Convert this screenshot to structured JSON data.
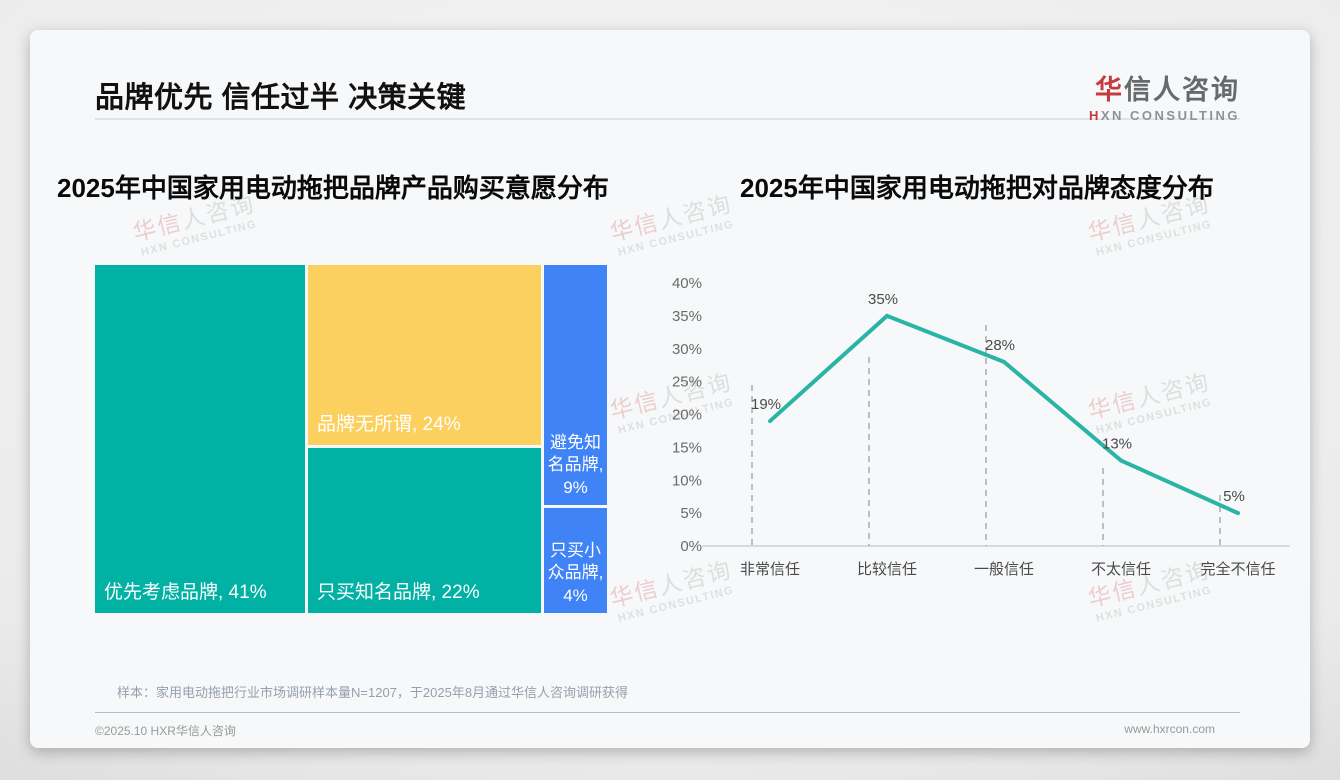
{
  "header": {
    "title": "品牌优先 信任过半 决策关键",
    "logo_cn_first": "华",
    "logo_cn_rest": "信人咨询",
    "logo_en_first": "H",
    "logo_en_rest": "XN CONSULTING"
  },
  "watermark": {
    "cn_pink": "华信",
    "cn_rest": "人咨询",
    "en": "HXN CONSULTING"
  },
  "footer": {
    "sample_note": "样本：家用电动拖把行业市场调研样本量N=1207，于2025年8月通过华信人咨询调研获得",
    "copyright": "©2025.10 HXR华信人咨询",
    "website": "www.hxrcon.com"
  },
  "chart_data": [
    {
      "type": "treemap",
      "title": "2025年中国家用电动拖把品牌产品购买意愿分布",
      "unit": "%",
      "nodes": [
        {
          "name": "优先考虑品牌",
          "value": 41,
          "label": "优先考虑品牌, 41%",
          "color": "#00b1a4"
        },
        {
          "name": "品牌无所谓",
          "value": 24,
          "label": "品牌无所谓, 24%",
          "color": "#fcd05f"
        },
        {
          "name": "只买知名品牌",
          "value": 22,
          "label": "只买知名品牌, 22%",
          "color": "#00b1a4"
        },
        {
          "name": "避免知名品牌",
          "value": 9,
          "label": "避免知名品牌, 9%",
          "color": "#3f83f6"
        },
        {
          "name": "只买小众品牌",
          "value": 4,
          "label": "只买小众品牌, 4%",
          "color": "#3f83f6"
        }
      ]
    },
    {
      "type": "line",
      "title": "2025年中国家用电动拖把对品牌态度分布",
      "categories": [
        "非常信任",
        "比较信任",
        "一般信任",
        "不太信任",
        "完全不信任"
      ],
      "values": [
        19,
        35,
        28,
        13,
        5
      ],
      "point_labels": [
        "19%",
        "35%",
        "28%",
        "13%",
        "5%"
      ],
      "yticks": [
        "0%",
        "5%",
        "10%",
        "15%",
        "20%",
        "25%",
        "30%",
        "35%",
        "40%"
      ],
      "ylim": [
        0,
        40
      ],
      "line_color": "#2ab4a6",
      "gridline_style": "dashed-vertical",
      "legend": "none"
    }
  ]
}
